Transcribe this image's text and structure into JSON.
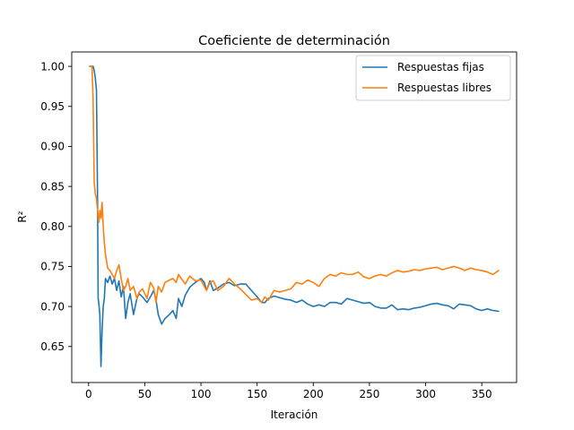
{
  "chart_data": {
    "type": "line",
    "title": "Coeficiente de determinación",
    "xlabel": "Iteración",
    "ylabel": "R²",
    "xlim": [
      -15,
      381
    ],
    "ylim": [
      0.605,
      1.018
    ],
    "xticks": [
      0,
      50,
      100,
      150,
      200,
      250,
      300,
      350
    ],
    "yticks": [
      0.65,
      0.7,
      0.75,
      0.8,
      0.85,
      0.9,
      0.95,
      1.0
    ],
    "xtick_labels": [
      "0",
      "50",
      "100",
      "150",
      "200",
      "250",
      "300",
      "350"
    ],
    "ytick_labels": [
      "0.65",
      "0.70",
      "0.75",
      "0.80",
      "0.85",
      "0.90",
      "0.95",
      "1.00"
    ],
    "grid": false,
    "legend_position": "top-right",
    "series": [
      {
        "name": "Respuestas fijas",
        "color": "#1f77b4",
        "x": [
          1,
          4,
          5,
          6,
          7,
          8,
          8.5,
          9,
          10,
          11,
          12,
          13,
          14,
          15,
          17,
          19,
          21,
          23,
          25,
          27,
          29,
          31,
          33,
          35,
          37,
          40,
          43,
          45,
          48,
          52,
          55,
          58,
          60,
          62,
          65,
          68,
          72,
          75,
          78,
          80,
          83,
          86,
          90,
          95,
          100,
          103,
          105,
          108,
          111,
          115,
          120,
          125,
          130,
          135,
          140,
          145,
          150,
          154,
          157,
          160,
          165,
          170,
          175,
          180,
          185,
          190,
          195,
          200,
          205,
          210,
          215,
          220,
          225,
          230,
          235,
          240,
          245,
          250,
          255,
          260,
          265,
          270,
          275,
          280,
          285,
          290,
          295,
          300,
          305,
          310,
          315,
          320,
          325,
          330,
          335,
          340,
          345,
          350,
          355,
          360,
          365
        ],
        "y": [
          1.0,
          1.0,
          0.995,
          0.985,
          0.97,
          0.83,
          0.71,
          0.705,
          0.69,
          0.625,
          0.67,
          0.7,
          0.71,
          0.735,
          0.73,
          0.738,
          0.728,
          0.735,
          0.72,
          0.732,
          0.712,
          0.725,
          0.685,
          0.705,
          0.716,
          0.69,
          0.71,
          0.716,
          0.712,
          0.705,
          0.712,
          0.72,
          0.708,
          0.69,
          0.678,
          0.685,
          0.69,
          0.695,
          0.685,
          0.71,
          0.7,
          0.714,
          0.724,
          0.73,
          0.735,
          0.73,
          0.72,
          0.732,
          0.72,
          0.723,
          0.728,
          0.73,
          0.726,
          0.728,
          0.728,
          0.72,
          0.712,
          0.705,
          0.705,
          0.71,
          0.713,
          0.711,
          0.709,
          0.708,
          0.705,
          0.708,
          0.703,
          0.7,
          0.702,
          0.7,
          0.705,
          0.705,
          0.703,
          0.71,
          0.708,
          0.706,
          0.704,
          0.705,
          0.7,
          0.698,
          0.698,
          0.702,
          0.696,
          0.697,
          0.696,
          0.698,
          0.699,
          0.701,
          0.703,
          0.704,
          0.702,
          0.701,
          0.697,
          0.703,
          0.702,
          0.701,
          0.697,
          0.695,
          0.697,
          0.695,
          0.694
        ]
      },
      {
        "name": "Respuestas libres",
        "color": "#ff7f0e",
        "x": [
          1,
          3,
          4,
          5,
          6,
          7,
          8,
          9,
          10,
          11,
          12,
          13,
          14,
          15,
          17,
          19,
          21,
          23,
          25,
          27,
          29,
          31,
          33,
          35,
          37,
          40,
          43,
          45,
          48,
          52,
          55,
          58,
          60,
          62,
          65,
          68,
          72,
          75,
          78,
          80,
          83,
          86,
          90,
          95,
          100,
          103,
          105,
          108,
          111,
          115,
          120,
          125,
          130,
          135,
          140,
          145,
          150,
          154,
          157,
          160,
          165,
          170,
          175,
          180,
          185,
          190,
          195,
          200,
          205,
          210,
          215,
          220,
          225,
          230,
          235,
          240,
          245,
          250,
          255,
          260,
          265,
          270,
          275,
          280,
          285,
          290,
          295,
          300,
          305,
          310,
          315,
          320,
          325,
          330,
          335,
          340,
          345,
          350,
          355,
          360,
          365
        ],
        "y": [
          1.0,
          1.0,
          0.96,
          0.855,
          0.84,
          0.835,
          0.82,
          0.805,
          0.82,
          0.81,
          0.83,
          0.8,
          0.78,
          0.765,
          0.748,
          0.745,
          0.74,
          0.735,
          0.745,
          0.752,
          0.735,
          0.72,
          0.725,
          0.735,
          0.72,
          0.725,
          0.71,
          0.718,
          0.722,
          0.71,
          0.73,
          0.723,
          0.705,
          0.725,
          0.718,
          0.73,
          0.733,
          0.735,
          0.73,
          0.74,
          0.734,
          0.728,
          0.738,
          0.732,
          0.733,
          0.725,
          0.72,
          0.73,
          0.732,
          0.72,
          0.725,
          0.735,
          0.728,
          0.722,
          0.715,
          0.708,
          0.71,
          0.705,
          0.712,
          0.708,
          0.72,
          0.718,
          0.72,
          0.722,
          0.73,
          0.728,
          0.733,
          0.73,
          0.725,
          0.735,
          0.74,
          0.738,
          0.742,
          0.74,
          0.74,
          0.743,
          0.737,
          0.735,
          0.738,
          0.74,
          0.738,
          0.742,
          0.745,
          0.743,
          0.744,
          0.746,
          0.745,
          0.747,
          0.748,
          0.749,
          0.746,
          0.748,
          0.75,
          0.748,
          0.745,
          0.748,
          0.746,
          0.745,
          0.743,
          0.74,
          0.745
        ]
      }
    ]
  }
}
